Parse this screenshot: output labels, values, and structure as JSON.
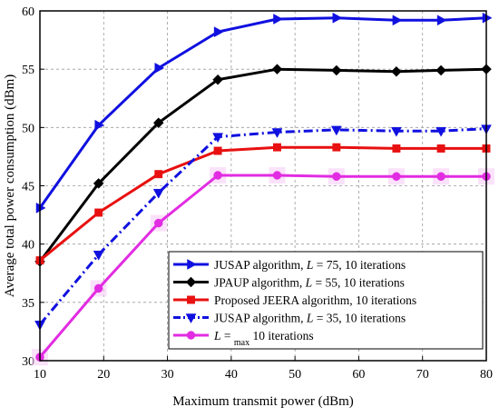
{
  "chart_data": {
    "type": "line",
    "xlabel": "Maximum transmit power (dBm)",
    "ylabel": "Average total power consumption (dBm)",
    "xlim": [
      10,
      80
    ],
    "ylim": [
      30,
      60
    ],
    "xticks": [
      10,
      20,
      30,
      40,
      50,
      60,
      70,
      80
    ],
    "yticks": [
      30,
      35,
      40,
      45,
      50,
      55,
      60
    ],
    "grid": true,
    "legend_position": "bottom-right",
    "series": [
      {
        "legend": {
          "pre": "JUSAP algorithm, ",
          "italic": "L",
          "post": " = 75, 10 iterations",
          "sub": "",
          "tail": ""
        },
        "color": "#1010e0",
        "marker": "triangle-right",
        "dash": "solid",
        "x": [
          10,
          19.2,
          28.6,
          37.9,
          47.2,
          56.5,
          65.9,
          72.9,
          80
        ],
        "values": [
          43.1,
          50.2,
          55.1,
          58.2,
          59.3,
          59.4,
          59.2,
          59.2,
          59.4
        ]
      },
      {
        "legend": {
          "pre": "JPAUP algorithm, ",
          "italic": "L",
          "post": " = 55, 10 iterations",
          "sub": "",
          "tail": ""
        },
        "color": "#000000",
        "marker": "diamond",
        "dash": "solid",
        "x": [
          10,
          19.2,
          28.6,
          37.9,
          47.2,
          56.5,
          65.9,
          72.9,
          80
        ],
        "values": [
          38.5,
          45.2,
          50.4,
          54.1,
          55.0,
          54.9,
          54.8,
          54.9,
          55.0
        ]
      },
      {
        "legend": {
          "pre": "Proposed JEERA algorithm, 10 iterations",
          "italic": "",
          "post": "",
          "sub": "",
          "tail": ""
        },
        "color": "#e81010",
        "marker": "square",
        "dash": "solid",
        "x": [
          10,
          19.2,
          28.6,
          37.9,
          47.2,
          56.5,
          65.9,
          72.9,
          80
        ],
        "values": [
          38.6,
          42.7,
          46.0,
          48.0,
          48.3,
          48.3,
          48.2,
          48.2,
          48.2
        ]
      },
      {
        "legend": {
          "pre": "JUSAP algorithm, ",
          "italic": "L",
          "post": " = 35, 10 iterations",
          "sub": "",
          "tail": ""
        },
        "color": "#1010e0",
        "marker": "triangle-down",
        "dash": "dashdot",
        "x": [
          10,
          19.2,
          28.6,
          37.9,
          47.2,
          56.5,
          65.9,
          72.9,
          80
        ],
        "values": [
          33.1,
          39.1,
          44.4,
          49.2,
          49.6,
          49.8,
          49.7,
          49.7,
          49.9
        ]
      },
      {
        "legend": {
          "pre": "",
          "italic": "L",
          "post": " = ",
          "sub": "max",
          "tail": " 10 iterations"
        },
        "color": "#e22ce2",
        "marker": "circle",
        "dash": "solid",
        "x": [
          10,
          19.2,
          28.6,
          37.9,
          47.2,
          56.5,
          65.9,
          72.9,
          80
        ],
        "values": [
          30.3,
          36.2,
          41.8,
          45.9,
          45.9,
          45.8,
          45.8,
          45.8,
          45.8
        ]
      }
    ]
  }
}
